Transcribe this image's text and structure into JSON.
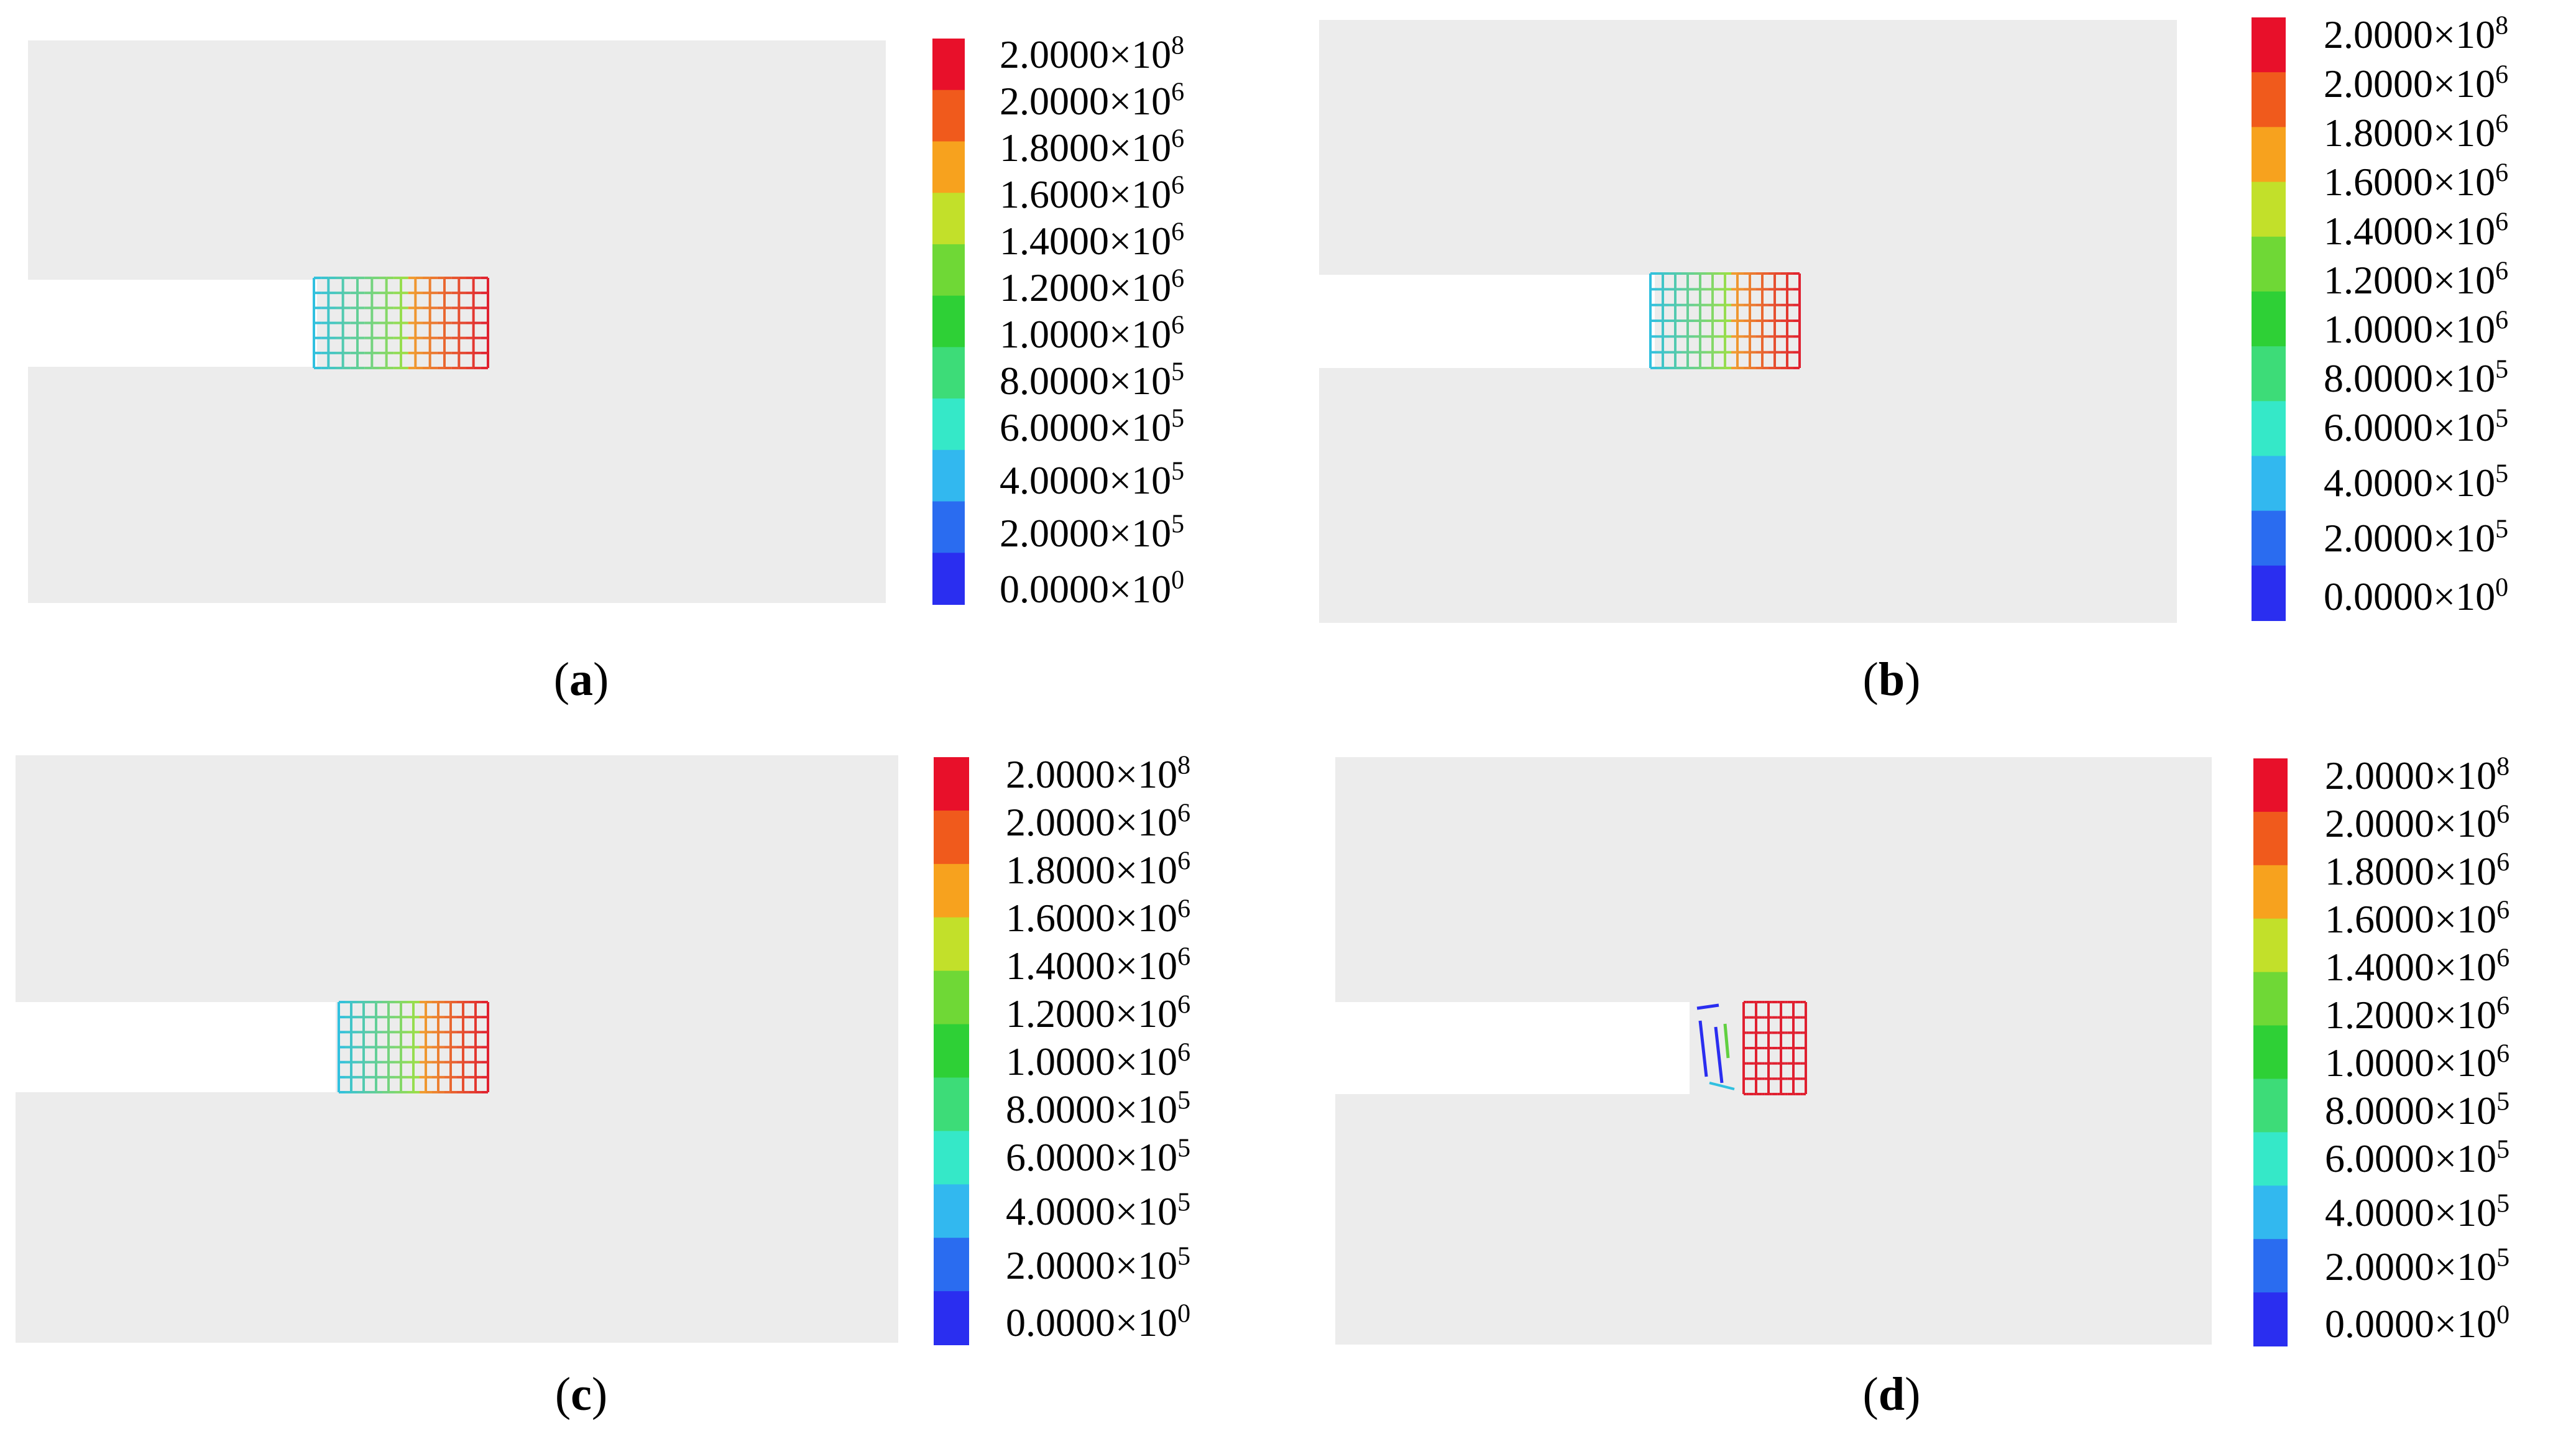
{
  "colorbar": {
    "colors": [
      "#e8102a",
      "#f05a1c",
      "#f7a21e",
      "#c2e02a",
      "#6fd836",
      "#2ed036",
      "#3ddc78",
      "#35e8c8",
      "#32b8ef",
      "#2a6cf0",
      "#2a2ef0"
    ],
    "labels": [
      {
        "mantissa": "2.0000",
        "exponent": "8"
      },
      {
        "mantissa": "2.0000",
        "exponent": "6"
      },
      {
        "mantissa": "1.8000",
        "exponent": "6"
      },
      {
        "mantissa": "1.6000",
        "exponent": "6"
      },
      {
        "mantissa": "1.4000",
        "exponent": "6"
      },
      {
        "mantissa": "1.2000",
        "exponent": "6"
      },
      {
        "mantissa": "1.0000",
        "exponent": "6"
      },
      {
        "mantissa": "8.0000",
        "exponent": "5"
      },
      {
        "mantissa": "6.0000",
        "exponent": "5"
      },
      {
        "mantissa": "4.0000",
        "exponent": "5"
      },
      {
        "mantissa": "2.0000",
        "exponent": "5"
      },
      {
        "mantissa": "0.0000",
        "exponent": "0"
      }
    ],
    "times_sign": "×10"
  },
  "panels": [
    {
      "id": "a",
      "caption": "a",
      "mesh_state": "intact"
    },
    {
      "id": "b",
      "caption": "b",
      "mesh_state": "intact"
    },
    {
      "id": "c",
      "caption": "c",
      "mesh_state": "intact"
    },
    {
      "id": "d",
      "caption": "d",
      "mesh_state": "damaged"
    }
  ],
  "background_color": "#ececec",
  "mesh_high_color": "#e02030",
  "mesh_low_color": "#30c0e0"
}
